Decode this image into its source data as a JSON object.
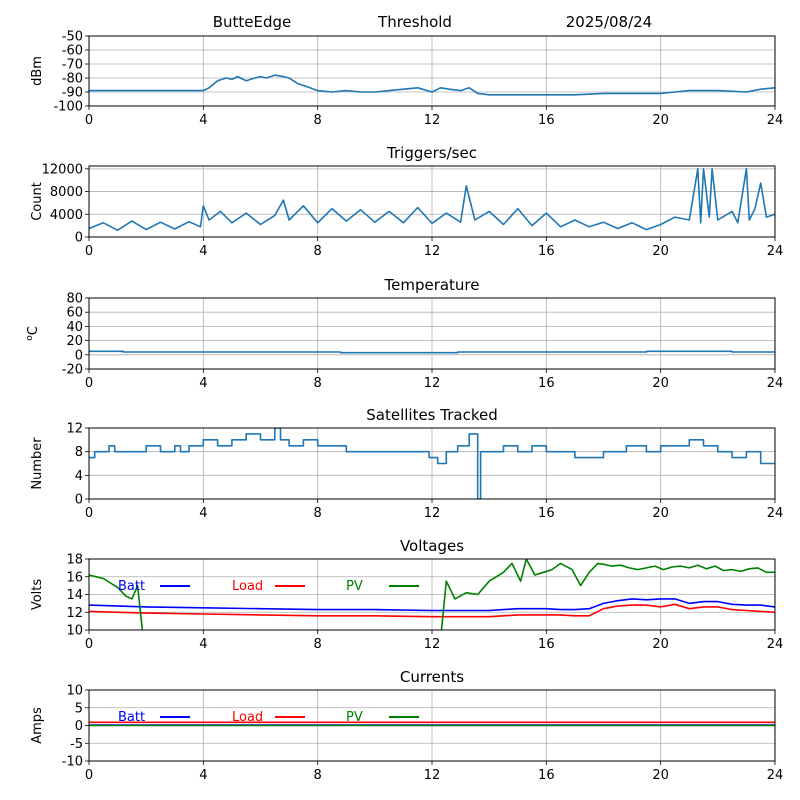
{
  "header": {
    "site": "ButteEdge",
    "subtitle": "Threshold",
    "date": "2025/08/24"
  },
  "chart_data": [
    {
      "type": "line",
      "title": "",
      "ylabel": "dBm",
      "xlim": [
        0,
        24
      ],
      "ylim": [
        -100,
        -50
      ],
      "xticks": [
        "0",
        "4",
        "8",
        "12",
        "16",
        "20",
        "24"
      ],
      "yticks": [
        -100,
        -90,
        -80,
        -70,
        -60,
        -50
      ],
      "grid": true,
      "series": [
        {
          "color": "#1f77b4",
          "x": [
            0,
            1,
            2,
            3,
            4,
            4.2,
            4.5,
            4.8,
            5.0,
            5.2,
            5.5,
            5.8,
            6.0,
            6.2,
            6.5,
            6.8,
            7.0,
            7.3,
            7.6,
            8.0,
            8.5,
            9.0,
            9.5,
            10.0,
            10.5,
            11.0,
            11.5,
            12.0,
            12.3,
            12.6,
            13.0,
            13.3,
            13.6,
            14.0,
            15.0,
            16.0,
            17.0,
            18.0,
            19.0,
            20.0,
            20.5,
            21,
            22,
            23,
            23.5,
            24
          ],
          "y": [
            -89,
            -89,
            -89,
            -89,
            -89,
            -87,
            -82,
            -80,
            -81,
            -79,
            -82,
            -80,
            -79,
            -80,
            -78,
            -79,
            -80,
            -84,
            -86,
            -89,
            -90,
            -89,
            -90,
            -90,
            -89,
            -88,
            -87,
            -90,
            -87,
            -88,
            -89,
            -87,
            -91,
            -92,
            -92,
            -92,
            -92,
            -91,
            -91,
            -91,
            -90,
            -89,
            -89,
            -90,
            -88,
            -87
          ]
        }
      ]
    },
    {
      "type": "line",
      "title": "Triggers/sec",
      "ylabel": "Count",
      "xlim": [
        0,
        24
      ],
      "ylim": [
        0,
        12500
      ],
      "xticks": [
        "0",
        "4",
        "8",
        "12",
        "16",
        "20",
        "24"
      ],
      "yticks": [
        0,
        4000,
        8000,
        12000
      ],
      "grid": true,
      "series": [
        {
          "color": "#1f77b4",
          "x": [
            0,
            0.5,
            1,
            1.5,
            2,
            2.5,
            3,
            3.5,
            3.9,
            4.0,
            4.2,
            4.6,
            5,
            5.5,
            6,
            6.5,
            6.8,
            7.0,
            7.5,
            8,
            8.5,
            9,
            9.5,
            10,
            10.5,
            11,
            11.5,
            12,
            12.5,
            13,
            13.2,
            13.5,
            14,
            14.5,
            15,
            15.5,
            16,
            16.5,
            17,
            17.5,
            18,
            18.5,
            19,
            19.5,
            20,
            20.5,
            21,
            21.3,
            21.4,
            21.5,
            21.7,
            21.8,
            22,
            22.5,
            22.7,
            23,
            23.1,
            23.3,
            23.5,
            23.7,
            24
          ],
          "y": [
            1500,
            2500,
            1200,
            2800,
            1300,
            2600,
            1400,
            2700,
            1800,
            5500,
            3000,
            4500,
            2500,
            4200,
            2200,
            3800,
            6500,
            3000,
            5500,
            2500,
            5000,
            2800,
            4800,
            2600,
            4500,
            2500,
            5200,
            2400,
            4200,
            2600,
            9000,
            3000,
            4500,
            2200,
            5000,
            2000,
            4200,
            1800,
            3000,
            1800,
            2600,
            1500,
            2500,
            1300,
            2200,
            3500,
            3000,
            12000,
            2500,
            12000,
            3500,
            12000,
            3000,
            4500,
            2500,
            12000,
            3000,
            5000,
            9500,
            3500,
            4000
          ]
        }
      ]
    },
    {
      "type": "line",
      "title": "Temperature",
      "ylabel": "oC",
      "xlim": [
        0,
        24
      ],
      "ylim": [
        -20,
        80
      ],
      "xticks": [
        "0",
        "4",
        "8",
        "12",
        "16",
        "20",
        "24"
      ],
      "yticks": [
        -20,
        0,
        20,
        40,
        60,
        80
      ],
      "grid": true,
      "series": [
        {
          "color": "#1f77b4",
          "x": [
            0,
            1.2,
            1.2,
            8.8,
            8.8,
            12.9,
            12.9,
            19.5,
            19.5,
            22.5,
            22.5,
            24
          ],
          "y": [
            5,
            5,
            4,
            4,
            3,
            3,
            4,
            4,
            5,
            5,
            4,
            4
          ]
        }
      ]
    },
    {
      "type": "line",
      "title": "Satellites Tracked",
      "ylabel": "Number",
      "xlim": [
        0,
        24
      ],
      "ylim": [
        0,
        12
      ],
      "xticks": [
        "0",
        "4",
        "8",
        "12",
        "16",
        "20",
        "24"
      ],
      "yticks": [
        0,
        4,
        8,
        12
      ],
      "grid": true,
      "series": [
        {
          "color": "#1f77b4",
          "x": [
            0,
            0.2,
            0.2,
            0.7,
            0.7,
            0.9,
            0.9,
            1.5,
            1.5,
            2,
            2,
            2.5,
            2.5,
            3,
            3,
            3.2,
            3.2,
            3.5,
            3.5,
            4,
            4,
            4.5,
            4.5,
            5,
            5,
            5.5,
            5.5,
            6,
            6,
            6.5,
            6.5,
            6.7,
            6.7,
            7,
            7,
            7.5,
            7.5,
            8,
            8,
            9,
            9,
            11,
            11,
            11.9,
            11.9,
            12.2,
            12.2,
            12.5,
            12.5,
            12.9,
            12.9,
            13.3,
            13.3,
            13.6,
            13.6,
            13.7,
            13.7,
            14.5,
            14.5,
            15,
            15,
            15.5,
            15.5,
            16,
            16,
            17,
            17,
            18,
            18,
            18.8,
            18.8,
            19.5,
            19.5,
            20,
            20,
            21,
            21,
            21.5,
            21.5,
            22,
            22,
            22.5,
            22.5,
            23,
            23,
            23.5,
            23.5,
            24
          ],
          "y": [
            7,
            7,
            8,
            8,
            9,
            9,
            8,
            8,
            8,
            8,
            9,
            9,
            8,
            8,
            9,
            9,
            8,
            8,
            9,
            9,
            10,
            10,
            9,
            9,
            10,
            10,
            11,
            11,
            10,
            10,
            12,
            12,
            10,
            10,
            9,
            9,
            10,
            10,
            9,
            9,
            8,
            8,
            8,
            8,
            7,
            7,
            6,
            6,
            8,
            8,
            9,
            9,
            11,
            11,
            0,
            0,
            8,
            8,
            9,
            9,
            8,
            8,
            9,
            9,
            8,
            8,
            7,
            7,
            8,
            8,
            9,
            9,
            8,
            8,
            9,
            9,
            10,
            10,
            9,
            9,
            8,
            8,
            7,
            7,
            8,
            8,
            6,
            6
          ]
        }
      ]
    },
    {
      "type": "line",
      "title": "Voltages",
      "ylabel": "Volts",
      "xlim": [
        0,
        24
      ],
      "ylim": [
        10,
        18
      ],
      "xticks": [
        "0",
        "4",
        "8",
        "12",
        "16",
        "20",
        "24"
      ],
      "yticks": [
        10,
        12,
        14,
        16,
        18
      ],
      "grid": true,
      "legend": "top-left",
      "series": [
        {
          "name": "Batt",
          "color": "#0000ff",
          "x": [
            0,
            2,
            4,
            6,
            8,
            10,
            12,
            14,
            14.5,
            15,
            15.5,
            16,
            16.5,
            17,
            17.5,
            18,
            18.5,
            19,
            19.5,
            20,
            20.5,
            21,
            21.5,
            22,
            22.5,
            23,
            23.5,
            24
          ],
          "y": [
            12.8,
            12.6,
            12.5,
            12.4,
            12.3,
            12.3,
            12.2,
            12.2,
            12.3,
            12.4,
            12.4,
            12.4,
            12.3,
            12.3,
            12.4,
            13.0,
            13.3,
            13.5,
            13.4,
            13.5,
            13.5,
            13.0,
            13.2,
            13.2,
            12.9,
            12.8,
            12.8,
            12.6
          ]
        },
        {
          "name": "Load",
          "color": "#ff0000",
          "x": [
            0,
            2,
            4,
            6,
            8,
            10,
            12,
            14,
            14.5,
            15,
            15.5,
            16,
            16.5,
            17,
            17.5,
            18,
            18.5,
            19,
            19.5,
            20,
            20.5,
            21,
            21.5,
            22,
            22.5,
            23,
            23.5,
            24
          ],
          "y": [
            12.1,
            11.9,
            11.8,
            11.7,
            11.6,
            11.6,
            11.5,
            11.5,
            11.6,
            11.7,
            11.7,
            11.7,
            11.7,
            11.6,
            11.6,
            12.4,
            12.7,
            12.8,
            12.8,
            12.6,
            12.9,
            12.4,
            12.6,
            12.6,
            12.3,
            12.2,
            12.1,
            12.0
          ]
        },
        {
          "name": "PV",
          "color": "#008000",
          "x": [
            0,
            0.5,
            1,
            1.3,
            1.5,
            1.7,
            1.9,
            12.3,
            12.5,
            12.8,
            13.2,
            13.6,
            14,
            14.5,
            14.8,
            15.1,
            15.3,
            15.6,
            15.9,
            16.2,
            16.5,
            16.9,
            17.2,
            17.5,
            17.8,
            18,
            18.3,
            18.6,
            18.9,
            19.2,
            19.5,
            19.8,
            20.1,
            20.4,
            20.7,
            21,
            21.3,
            21.6,
            21.9,
            22.2,
            22.5,
            22.8,
            23.1,
            23.4,
            23.7,
            24
          ],
          "y": [
            16.2,
            15.8,
            14.8,
            13.8,
            13.5,
            15.0,
            9.0,
            9.0,
            15.5,
            13.5,
            14.2,
            14.0,
            15.5,
            16.5,
            17.5,
            15.5,
            18.0,
            16.2,
            16.5,
            16.8,
            17.5,
            16.8,
            15.0,
            16.5,
            17.5,
            17.4,
            17.2,
            17.3,
            17.0,
            16.8,
            17.0,
            17.2,
            16.8,
            17.1,
            17.2,
            17.0,
            17.3,
            16.9,
            17.2,
            16.7,
            16.8,
            16.6,
            16.9,
            17.0,
            16.5,
            16.5
          ]
        }
      ]
    },
    {
      "type": "line",
      "title": "Currents",
      "ylabel": "Amps",
      "xlim": [
        0,
        24
      ],
      "ylim": [
        -10,
        10
      ],
      "xticks": [
        "0",
        "4",
        "8",
        "12",
        "16",
        "20",
        "24"
      ],
      "yticks": [
        -10,
        -5,
        0,
        5,
        10
      ],
      "grid": true,
      "legend": "top-left",
      "series": [
        {
          "name": "Batt",
          "color": "#0000ff",
          "x": [
            0,
            24
          ],
          "y": [
            0.1,
            0.1
          ]
        },
        {
          "name": "Load",
          "color": "#ff0000",
          "x": [
            0,
            24
          ],
          "y": [
            0.9,
            0.9
          ]
        },
        {
          "name": "PV",
          "color": "#008000",
          "x": [
            0,
            24
          ],
          "y": [
            0.0,
            0.0
          ]
        }
      ]
    }
  ]
}
